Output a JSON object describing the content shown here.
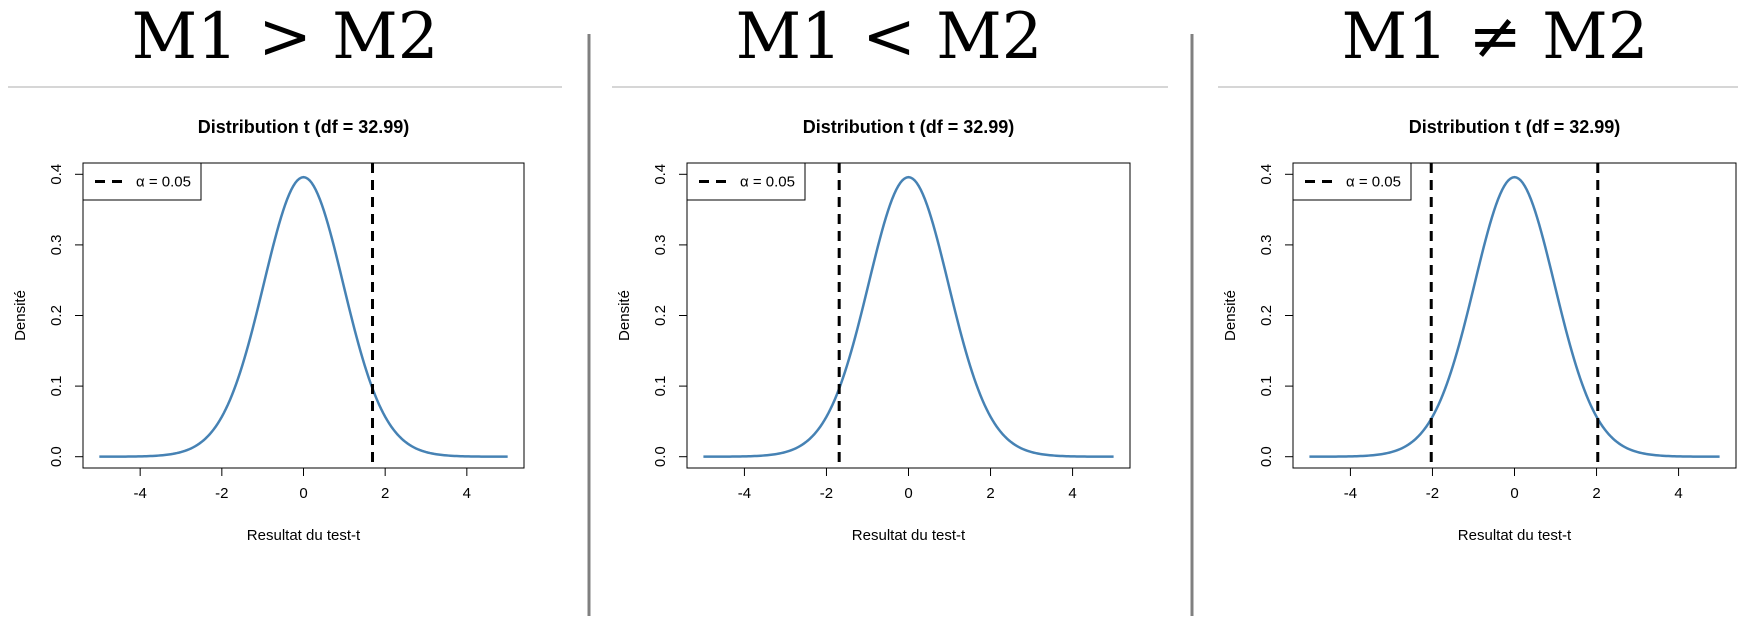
{
  "colors": {
    "curve": "#4682B4",
    "threshold": "#000000",
    "separator": "#808080",
    "rule": "#c8c8c8"
  },
  "chart_data": [
    {
      "type": "line",
      "heading": "M1 > M2",
      "title": "Distribution t (df = 32.99)",
      "xlabel": "Resultat du test-t",
      "ylabel": "Densité",
      "df": 32.99,
      "xlim": [
        -5,
        5
      ],
      "ylim": [
        0,
        0.4
      ],
      "xticks": [
        -4,
        -2,
        0,
        2,
        4
      ],
      "yticks": [
        0.0,
        0.1,
        0.2,
        0.3,
        0.4
      ],
      "xtick_labels": [
        "-4",
        "-2",
        "0",
        "2",
        "4"
      ],
      "ytick_labels": [
        "0.0",
        "0.1",
        "0.2",
        "0.3",
        "0.4"
      ],
      "critical_values": [
        1.69
      ],
      "legend": {
        "label": "α = 0.05",
        "position": "top-left"
      }
    },
    {
      "type": "line",
      "heading": "M1 < M2",
      "title": "Distribution t (df = 32.99)",
      "xlabel": "Resultat du test-t",
      "ylabel": "Densité",
      "df": 32.99,
      "xlim": [
        -5,
        5
      ],
      "ylim": [
        0,
        0.4
      ],
      "xticks": [
        -4,
        -2,
        0,
        2,
        4
      ],
      "yticks": [
        0.0,
        0.1,
        0.2,
        0.3,
        0.4
      ],
      "xtick_labels": [
        "-4",
        "-2",
        "0",
        "2",
        "4"
      ],
      "ytick_labels": [
        "0.0",
        "0.1",
        "0.2",
        "0.3",
        "0.4"
      ],
      "critical_values": [
        -1.69
      ],
      "legend": {
        "label": "α = 0.05",
        "position": "top-left"
      }
    },
    {
      "type": "line",
      "heading": "M1 ≠ M2",
      "title": "Distribution t (df = 32.99)",
      "xlabel": "Resultat du test-t",
      "ylabel": "Densité",
      "df": 32.99,
      "xlim": [
        -5,
        5
      ],
      "ylim": [
        0,
        0.4
      ],
      "xticks": [
        -4,
        -2,
        0,
        2,
        4
      ],
      "yticks": [
        0.0,
        0.1,
        0.2,
        0.3,
        0.4
      ],
      "xtick_labels": [
        "-4",
        "-2",
        "0",
        "2",
        "4"
      ],
      "ytick_labels": [
        "0.0",
        "0.1",
        "0.2",
        "0.3",
        "0.4"
      ],
      "critical_values": [
        -2.03,
        2.03
      ],
      "legend": {
        "label": "α = 0.05",
        "position": "top-left"
      }
    }
  ]
}
